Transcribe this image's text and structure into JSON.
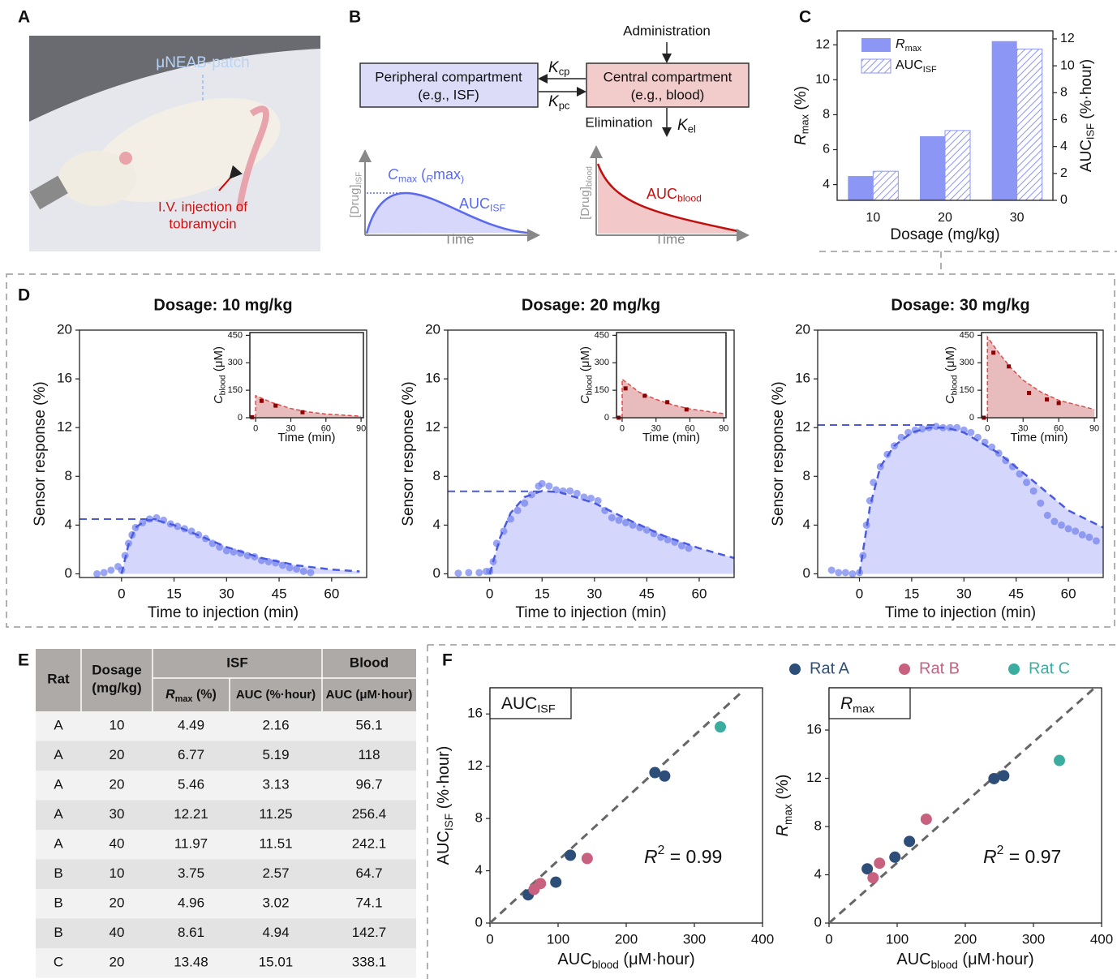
{
  "panel_labels": [
    "A",
    "B",
    "C",
    "D",
    "E",
    "F"
  ],
  "photo": {
    "patch_label": "μNEAB-patch",
    "injection_label": "I.V. injection of",
    "injection_label_2": "tobramycin"
  },
  "diagram": {
    "administration": "Administration",
    "peripheral_title": "Peripheral compartment",
    "peripheral_note": "(e.g., ISF)",
    "central_title": "Central compartment",
    "central_note": "(e.g., blood)",
    "k_cp": [
      "K",
      "cp"
    ],
    "k_pc": [
      "K",
      "pc"
    ],
    "elimination": "Elimination",
    "k_el": [
      "K",
      "el"
    ],
    "isf_plot": {
      "ylabel": [
        "[Drug]",
        "ISF"
      ],
      "xlabel": "Time",
      "cmax_label": [
        "C",
        "max",
        " (",
        "R",
        "max",
        ")"
      ],
      "auc_label": [
        "AUC",
        "ISF"
      ]
    },
    "blood_plot": {
      "ylabel": [
        "[Drug]",
        "blood"
      ],
      "xlabel": "Time",
      "auc_label": [
        "AUC",
        "blood"
      ]
    }
  },
  "chart_data": [
    {
      "type": "bar",
      "categories": [
        "10",
        "20",
        "30"
      ],
      "xlabel": "Dosage (mg/kg)",
      "ylabel": [
        "R",
        "max",
        " (%)"
      ],
      "y2label": [
        "AUC",
        "ISF",
        " (%·hour)"
      ],
      "ylim": [
        3.1,
        12.8
      ],
      "yticks": [
        4,
        6,
        8,
        10,
        12
      ],
      "y2lim": [
        0,
        12.6
      ],
      "y2ticks": [
        0,
        2,
        4,
        6,
        8,
        10,
        12
      ],
      "legend": "upper left",
      "series": [
        {
          "name": [
            "R",
            "max"
          ],
          "color": "#8c96f5",
          "values": [
            4.49,
            6.77,
            12.21
          ]
        },
        {
          "name": [
            "AUC",
            "ISF"
          ],
          "color": "#8c96f5",
          "hatch": true,
          "axis": "y2",
          "values": [
            2.16,
            5.19,
            11.25
          ]
        }
      ]
    },
    {
      "type": "scatter-fit",
      "title": "Dosage: 10 mg/kg",
      "xlabel": "Time to injection (min)",
      "ylabel": "Sensor response (%)",
      "xlim": [
        -12,
        70
      ],
      "ylim": [
        -0.3,
        20
      ],
      "xticks": [
        0,
        15,
        30,
        45,
        60
      ],
      "yticks": [
        0,
        4,
        8,
        12,
        16,
        20
      ],
      "color": "#6f7fee",
      "fill": "#d5d6fb",
      "x": [
        -7,
        -5,
        -3,
        -1,
        0,
        1,
        2,
        3,
        4,
        6,
        8,
        10,
        12,
        14,
        16,
        18,
        20,
        22,
        24,
        26,
        28,
        30,
        32,
        34,
        36,
        38,
        40,
        42,
        44,
        46,
        48,
        50,
        52,
        54
      ],
      "values": [
        0,
        0.1,
        0.3,
        0.6,
        0.3,
        1.5,
        2.5,
        3.2,
        3.8,
        4.2,
        4.5,
        4.6,
        4.4,
        4.1,
        3.9,
        3.7,
        3.5,
        3.2,
        2.9,
        2.5,
        2.2,
        1.9,
        1.8,
        1.7,
        1.5,
        1.4,
        1.1,
        1.0,
        0.9,
        0.7,
        0.5,
        0.4,
        0.2,
        0.1
      ],
      "fit": {
        "x": [
          0,
          2,
          4,
          7,
          10,
          15,
          20,
          30,
          40,
          50,
          60,
          68
        ],
        "values": [
          0,
          2.4,
          3.8,
          4.4,
          4.4,
          4.0,
          3.4,
          2.2,
          1.3,
          0.7,
          0.35,
          0.2
        ]
      },
      "rmax_line": {
        "x": [
          -12,
          10
        ],
        "y": 4.49
      }
    },
    {
      "type": "inset",
      "xlabel": "Time (min)",
      "ylabel": [
        "C",
        "blood",
        " (μM)"
      ],
      "xlim": [
        -5,
        92
      ],
      "ylim": [
        0,
        465
      ],
      "xticks": [
        0,
        30,
        60,
        90
      ],
      "yticks": [
        0,
        150,
        300,
        450
      ],
      "color": "#8b0000",
      "fit_color": "#e04848",
      "fill": "#e8bcbc",
      "x": [
        -3,
        5,
        17,
        40
      ],
      "values": [
        3,
        92,
        66,
        30
      ],
      "fit": {
        "x": [
          0,
          0,
          15,
          30,
          45,
          60,
          90
        ],
        "values": [
          0,
          120,
          80,
          50,
          32,
          20,
          8
        ]
      }
    },
    {
      "type": "scatter-fit",
      "title": "Dosage: 20 mg/kg",
      "xlabel": "Time to injection (min)",
      "ylabel": "Sensor response (%)",
      "xlim": [
        -12,
        70
      ],
      "ylim": [
        -0.3,
        20
      ],
      "xticks": [
        0,
        15,
        30,
        45,
        60
      ],
      "yticks": [
        0,
        4,
        8,
        12,
        16,
        20
      ],
      "color": "#6f7fee",
      "fill": "#d5d6fb",
      "x": [
        -9,
        -6,
        -3,
        -1,
        0,
        1,
        2,
        4,
        6,
        8,
        10,
        12,
        14,
        15,
        17,
        19,
        21,
        23,
        25,
        27,
        29,
        31,
        33,
        35,
        37,
        39,
        41,
        43,
        45,
        47,
        49,
        51,
        53,
        55,
        57
      ],
      "values": [
        0.05,
        0.1,
        0.1,
        0.2,
        0.2,
        1.0,
        2.5,
        3.5,
        4.5,
        5.2,
        5.8,
        6.5,
        7.2,
        7.4,
        7.2,
        6.9,
        6.8,
        6.8,
        6.6,
        6.3,
        6.2,
        6.0,
        5.2,
        4.6,
        4.4,
        4.2,
        4.0,
        3.8,
        3.6,
        3.3,
        3.0,
        2.8,
        2.6,
        2.3,
        2.1
      ],
      "fit": {
        "x": [
          0,
          3,
          6,
          10,
          15,
          20,
          30,
          40,
          50,
          60,
          70
        ],
        "values": [
          0,
          3,
          5,
          6.3,
          6.8,
          6.7,
          5.8,
          4.4,
          3.1,
          2.1,
          1.3
        ]
      },
      "rmax_line": {
        "x": [
          -12,
          15
        ],
        "y": 6.77
      }
    },
    {
      "type": "inset",
      "xlabel": "Time (min)",
      "ylabel": [
        "C",
        "blood",
        " (μM)"
      ],
      "xlim": [
        -5,
        92
      ],
      "ylim": [
        0,
        465
      ],
      "xticks": [
        0,
        30,
        60,
        90
      ],
      "yticks": [
        0,
        150,
        300,
        450
      ],
      "color": "#8b0000",
      "fit_color": "#e04848",
      "fill": "#e8bcbc",
      "x": [
        -3,
        3,
        20,
        40,
        57
      ],
      "values": [
        0,
        160,
        120,
        85,
        45
      ],
      "fit": {
        "x": [
          0,
          0,
          15,
          30,
          45,
          60,
          90
        ],
        "values": [
          0,
          210,
          140,
          100,
          70,
          48,
          22
        ]
      }
    },
    {
      "type": "scatter-fit",
      "title": "Dosage: 30 mg/kg",
      "xlabel": "Time to injection (min)",
      "ylabel": "Sensor response (%)",
      "xlim": [
        -12,
        70
      ],
      "ylim": [
        -0.3,
        20
      ],
      "xticks": [
        0,
        15,
        30,
        45,
        60
      ],
      "yticks": [
        0,
        4,
        8,
        12,
        16,
        20
      ],
      "color": "#6f7fee",
      "fill": "#d5d6fb",
      "x": [
        -8,
        -6,
        -4,
        -2,
        0,
        1,
        2,
        3,
        4,
        6,
        8,
        10,
        12,
        14,
        16,
        18,
        20,
        22,
        24,
        26,
        28,
        30,
        32,
        34,
        36,
        38,
        40,
        42,
        44,
        46,
        48,
        50,
        52,
        54,
        56,
        58,
        60,
        62,
        64,
        66,
        68
      ],
      "values": [
        0.3,
        0.1,
        0.1,
        0.0,
        0.1,
        1.5,
        4,
        6,
        7.5,
        8.8,
        9.8,
        10.5,
        11.2,
        11.6,
        11.8,
        11.9,
        12.0,
        12.1,
        12.0,
        12.0,
        12.0,
        11.8,
        11.6,
        11.2,
        10.8,
        10.4,
        9.9,
        9.3,
        8.8,
        8.2,
        7.5,
        6.8,
        5.8,
        4.8,
        4.3,
        4.0,
        3.7,
        3.5,
        3.2,
        3.0,
        2.7
      ],
      "fit": {
        "x": [
          0,
          3,
          6,
          10,
          15,
          20,
          25,
          30,
          40,
          50,
          60,
          70
        ],
        "values": [
          0,
          5.5,
          8.8,
          10.5,
          11.6,
          12.0,
          12.0,
          11.6,
          9.9,
          7.6,
          5.2,
          3.8
        ]
      },
      "rmax_line": {
        "x": [
          -12,
          22
        ],
        "y": 12.21
      }
    },
    {
      "type": "inset",
      "xlabel": "Time (min)",
      "ylabel": [
        "C",
        "blood",
        " (μM)"
      ],
      "xlim": [
        -5,
        92
      ],
      "ylim": [
        0,
        465
      ],
      "xticks": [
        0,
        30,
        60,
        90
      ],
      "yticks": [
        0,
        150,
        300,
        450
      ],
      "color": "#8b0000",
      "fit_color": "#e04848",
      "fill": "#e8bcbc",
      "x": [
        -3,
        5,
        18,
        35,
        50,
        60
      ],
      "values": [
        0,
        355,
        280,
        135,
        100,
        80
      ],
      "fit": {
        "x": [
          0,
          0,
          10,
          20,
          30,
          45,
          60,
          90
        ],
        "values": [
          0,
          440,
          350,
          270,
          205,
          140,
          95,
          45
        ]
      }
    },
    {
      "type": "scatter",
      "label": [
        "AUC",
        "ISF"
      ],
      "xlabel": [
        "AUC",
        "blood",
        " (μM·hour)"
      ],
      "ylabel": [
        "AUC",
        "ISF",
        " (%·hour)"
      ],
      "xlim": [
        0,
        400
      ],
      "ylim": [
        0,
        18
      ],
      "xticks": [
        0,
        100,
        200,
        300,
        400
      ],
      "yticks": [
        0,
        4,
        8,
        12,
        16
      ],
      "series": [
        {
          "color": "#2d4e78",
          "x": [
            56.1,
            118,
            96.7,
            256.4,
            242.1
          ],
          "values": [
            2.16,
            5.19,
            3.13,
            11.25,
            11.51
          ]
        },
        {
          "color": "#c8607f",
          "x": [
            64.7,
            74.1,
            142.7
          ],
          "values": [
            2.57,
            3.02,
            4.94
          ]
        },
        {
          "color": "#3aada0",
          "x": [
            338.1
          ],
          "values": [
            15.01
          ]
        }
      ],
      "fit_line": {
        "x": [
          0,
          370
        ],
        "values": [
          0,
          17.7
        ]
      },
      "r2_text": [
        "R",
        "2",
        " = "
      ],
      "r2": 0.99
    },
    {
      "type": "scatter",
      "label": [
        "R",
        "max"
      ],
      "xlabel": [
        "AUC",
        "blood",
        " (μM·hour)"
      ],
      "ylabel": [
        "R",
        "max",
        " (%)"
      ],
      "xlim": [
        0,
        400
      ],
      "ylim": [
        0,
        19.5
      ],
      "xticks": [
        0,
        100,
        200,
        300,
        400
      ],
      "yticks": [
        0,
        4,
        8,
        12,
        16
      ],
      "legend": "top",
      "series": [
        {
          "name": "Rat A",
          "color": "#2d4e78",
          "x": [
            56.1,
            118,
            96.7,
            256.4,
            242.1
          ],
          "values": [
            4.49,
            6.77,
            5.46,
            12.21,
            11.97
          ]
        },
        {
          "name": "Rat B",
          "color": "#c8607f",
          "x": [
            64.7,
            74.1,
            142.7
          ],
          "values": [
            3.75,
            4.96,
            8.61
          ]
        },
        {
          "name": "Rat C",
          "color": "#3aada0",
          "x": [
            338.1
          ],
          "values": [
            13.48
          ]
        }
      ],
      "fit_line": {
        "x": [
          0,
          390
        ],
        "values": [
          0,
          19.5
        ]
      },
      "r2_text": [
        "R",
        "2",
        " = "
      ],
      "r2": 0.97
    }
  ],
  "table": {
    "header": {
      "rat": "Rat",
      "dosage": "Dosage",
      "dosage_unit": "(mg/kg)",
      "isf": "ISF",
      "blood": "Blood",
      "rmax": [
        "R",
        "max",
        " (%)"
      ],
      "auc_isf": "AUC (%·hour)",
      "auc_blood": "AUC (μM·hour)"
    },
    "rows": [
      [
        "A",
        10,
        4.49,
        2.16,
        56.1
      ],
      [
        "A",
        20,
        6.77,
        5.19,
        118
      ],
      [
        "A",
        20,
        5.46,
        3.13,
        96.7
      ],
      [
        "A",
        30,
        12.21,
        11.25,
        256.4
      ],
      [
        "A",
        40,
        11.97,
        11.51,
        242.1
      ],
      [
        "B",
        10,
        3.75,
        2.57,
        64.7
      ],
      [
        "B",
        20,
        4.96,
        3.02,
        74.1
      ],
      [
        "B",
        40,
        8.61,
        4.94,
        142.7
      ],
      [
        "C",
        20,
        13.48,
        15.01,
        338.1
      ]
    ]
  }
}
